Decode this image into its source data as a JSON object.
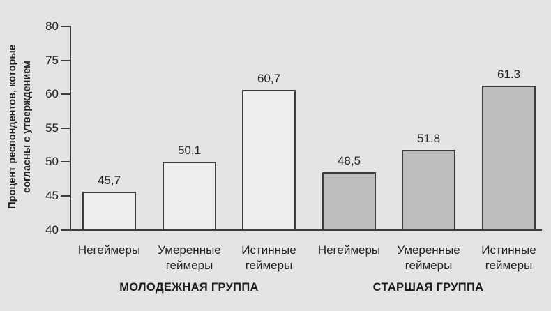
{
  "figure": {
    "background_color": "#e4e4e4",
    "axis_color": "#3c3c3c",
    "text_color": "#222222",
    "light_bar_fill": "#eeeeec",
    "gray_bar_fill": "#bdbdbf"
  },
  "y_axis_title": {
    "line1": "Процент респондентов, которые",
    "line2": "согласны с утверждением"
  },
  "chart_data": {
    "type": "bar",
    "title": "",
    "xlabel": "",
    "ylabel": "Процент респондентов, которые согласны с утверждением",
    "grid": false,
    "legend": false,
    "y_tick_labels_top_to_bottom": [
      "80",
      "75",
      "60",
      "55",
      "50",
      "45",
      "40"
    ],
    "y_axis_note": "ticks evenly spaced; bars plotted on linear scale with 5 units per tick starting at 40",
    "ylim": [
      40,
      80
    ],
    "value_scale": {
      "origin": 40,
      "units_per_tick": 5
    },
    "groups": [
      {
        "label": "МОЛОДЕЖНАЯ ГРУППА",
        "bar_fill": "#eeeeec",
        "bars": [
          {
            "category": "Негеймеры",
            "value": 45.7,
            "value_label": "45,7"
          },
          {
            "category": "Умеренные геймеры",
            "value": 50.1,
            "value_label": "50,1"
          },
          {
            "category": "Истинные геймеры",
            "value": 60.7,
            "value_label": "60,7"
          }
        ]
      },
      {
        "label": "СТАРШАЯ ГРУППА",
        "bar_fill": "#bdbdbf",
        "bars": [
          {
            "category": "Негеймеры",
            "value": 48.5,
            "value_label": "48,5"
          },
          {
            "category": "Умеренные геймеры",
            "value": 51.8,
            "value_label": "51.8"
          },
          {
            "category": "Истинные геймеры",
            "value": 61.3,
            "value_label": "61.3"
          }
        ]
      }
    ]
  }
}
